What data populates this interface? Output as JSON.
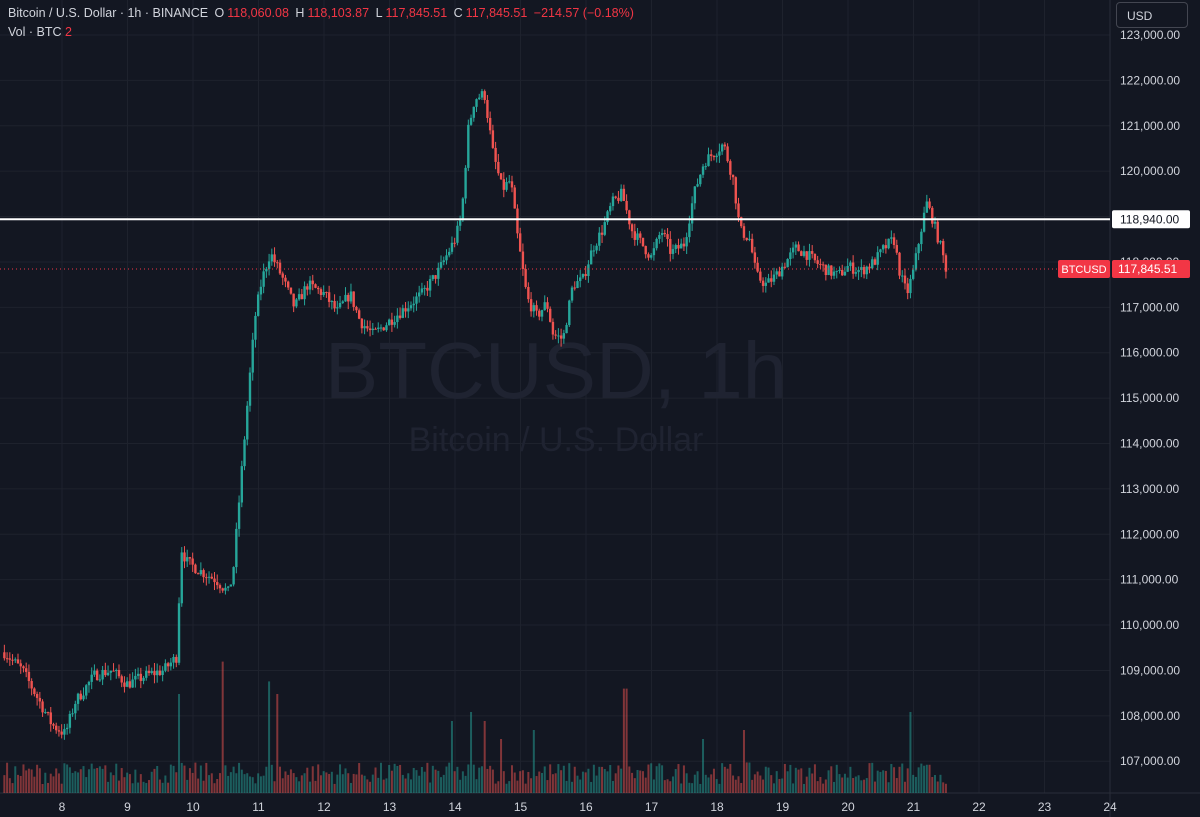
{
  "header": {
    "symbol_line": "Bitcoin / U.S. Dollar · 1h · BINANCE",
    "open_label": "O",
    "open": "118,060.08",
    "high_label": "H",
    "high": "118,103.87",
    "low_label": "L",
    "low": "117,845.51",
    "close_label": "C",
    "close": "117,845.51",
    "change": "−214.57 (−0.18%)",
    "volume_label": "Vol · BTC",
    "volume_value": "2"
  },
  "currency_button": "USD",
  "watermark": {
    "symbol": "BTCUSD, 1h",
    "name": "Bitcoin / U.S. Dollar"
  },
  "colors": {
    "background": "#131722",
    "up": "#26a69a",
    "down": "#ef5350",
    "grid": "#1e222d",
    "hline": "#ffffff",
    "last_price": "#f23645"
  },
  "chart_data": {
    "type": "candlestick",
    "title": "Bitcoin / U.S. Dollar · 1h · BINANCE",
    "xlabel": "",
    "ylabel": "",
    "x_ticks": [
      "8",
      "9",
      "10",
      "11",
      "12",
      "13",
      "14",
      "15",
      "16",
      "17",
      "18",
      "19",
      "20",
      "21",
      "22",
      "23",
      "24"
    ],
    "y_ticks": [
      "107,000.00",
      "108,000.00",
      "109,000.00",
      "110,000.00",
      "111,000.00",
      "112,000.00",
      "113,000.00",
      "114,000.00",
      "115,000.00",
      "116,000.00",
      "117,000.00",
      "118,000.00",
      "119,000.00",
      "120,000.00",
      "121,000.00",
      "122,000.00",
      "123,000.00"
    ],
    "ylim": [
      106300,
      123200
    ],
    "xlim_days": [
      7.1,
      24.2
    ],
    "grid": true,
    "series": [
      {
        "type": "price_path",
        "price_path": [
          [
            7.12,
            109400
          ],
          [
            7.4,
            109000
          ],
          [
            7.7,
            108200
          ],
          [
            7.85,
            107800
          ],
          [
            8.05,
            107600
          ],
          [
            8.2,
            108300
          ],
          [
            8.5,
            108900
          ],
          [
            8.75,
            109000
          ],
          [
            9.0,
            108700
          ],
          [
            9.3,
            108900
          ],
          [
            9.55,
            109000
          ],
          [
            9.75,
            109300
          ],
          [
            9.82,
            111700
          ],
          [
            9.9,
            111400
          ],
          [
            10.1,
            111200
          ],
          [
            10.35,
            111000
          ],
          [
            10.55,
            110700
          ],
          [
            10.62,
            111300
          ],
          [
            10.72,
            113000
          ],
          [
            10.85,
            115200
          ],
          [
            10.95,
            116800
          ],
          [
            11.05,
            117600
          ],
          [
            11.18,
            118200
          ],
          [
            11.35,
            117700
          ],
          [
            11.55,
            117000
          ],
          [
            11.75,
            117500
          ],
          [
            12.0,
            117300
          ],
          [
            12.2,
            116900
          ],
          [
            12.4,
            117300
          ],
          [
            12.55,
            116700
          ],
          [
            12.75,
            116400
          ],
          [
            13.0,
            116700
          ],
          [
            13.25,
            117000
          ],
          [
            13.5,
            117300
          ],
          [
            13.75,
            117800
          ],
          [
            14.0,
            118500
          ],
          [
            14.1,
            119000
          ],
          [
            14.2,
            120900
          ],
          [
            14.3,
            121600
          ],
          [
            14.45,
            121700
          ],
          [
            14.58,
            120400
          ],
          [
            14.72,
            119600
          ],
          [
            14.85,
            119800
          ],
          [
            14.95,
            118600
          ],
          [
            15.1,
            117200
          ],
          [
            15.25,
            116800
          ],
          [
            15.4,
            117100
          ],
          [
            15.5,
            116400
          ],
          [
            15.65,
            116300
          ],
          [
            15.8,
            117500
          ],
          [
            15.95,
            117600
          ],
          [
            16.1,
            118300
          ],
          [
            16.25,
            118700
          ],
          [
            16.4,
            119300
          ],
          [
            16.55,
            119500
          ],
          [
            16.7,
            118700
          ],
          [
            16.85,
            118400
          ],
          [
            17.0,
            118100
          ],
          [
            17.15,
            118700
          ],
          [
            17.3,
            118200
          ],
          [
            17.5,
            118400
          ],
          [
            17.65,
            119500
          ],
          [
            17.8,
            120200
          ],
          [
            17.95,
            120400
          ],
          [
            18.1,
            120600
          ],
          [
            18.25,
            119800
          ],
          [
            18.35,
            118700
          ],
          [
            18.5,
            118500
          ],
          [
            18.6,
            117700
          ],
          [
            18.75,
            117500
          ],
          [
            18.9,
            117700
          ],
          [
            19.05,
            118000
          ],
          [
            19.2,
            118300
          ],
          [
            19.35,
            118200
          ],
          [
            19.5,
            118000
          ],
          [
            19.7,
            117800
          ],
          [
            19.85,
            117700
          ],
          [
            20.0,
            117900
          ],
          [
            20.2,
            117800
          ],
          [
            20.4,
            118000
          ],
          [
            20.55,
            118300
          ],
          [
            20.7,
            118500
          ],
          [
            20.8,
            117700
          ],
          [
            20.9,
            117300
          ],
          [
            21.0,
            117800
          ],
          [
            21.1,
            118600
          ],
          [
            21.2,
            119300
          ],
          [
            21.28,
            119000
          ],
          [
            21.42,
            118300
          ],
          [
            21.5,
            117846
          ]
        ]
      },
      {
        "name": "Vol · BTC",
        "type": "volume_bars",
        "values": []
      }
    ],
    "horizontal_line": {
      "price": 118940,
      "label": "118,940.00"
    },
    "last_price": {
      "price": 117845.51,
      "ticker": "BTCUSD",
      "label": "117,845.51"
    },
    "volume_spikes": [
      [
        9.8,
        0.55
      ],
      [
        10.45,
        0.73
      ],
      [
        11.15,
        0.62
      ],
      [
        11.3,
        0.55
      ],
      [
        13.95,
        0.4
      ],
      [
        14.25,
        0.45
      ],
      [
        14.45,
        0.4
      ],
      [
        14.7,
        0.3
      ],
      [
        16.6,
        0.58
      ],
      [
        17.8,
        0.3
      ],
      [
        18.4,
        0.35
      ],
      [
        20.95,
        0.45
      ],
      [
        15.2,
        0.35
      ]
    ]
  }
}
